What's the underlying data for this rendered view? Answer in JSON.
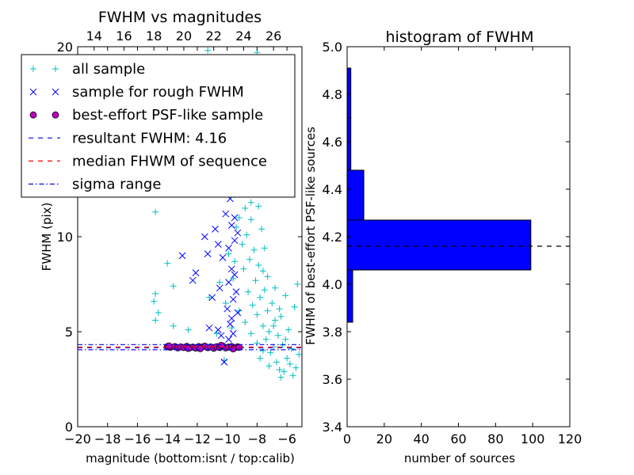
{
  "chart_data": [
    {
      "type": "scatter",
      "title": "FWHM vs magnitudes",
      "xlabel": "magnitude (bottom:isnt / top:calib)",
      "ylabel": "FWHM (pix)",
      "xlim": [
        -20,
        -5
      ],
      "ylim": [
        0,
        20
      ],
      "xticks": [
        -20,
        -18,
        -16,
        -14,
        -12,
        -10,
        -8,
        -6
      ],
      "xtick_labels": [
        "−20",
        "−18",
        "−16",
        "−14",
        "−12",
        "−10",
        "−8",
        "−6"
      ],
      "yticks": [
        0,
        5,
        10,
        20
      ],
      "ytick_labels": [
        "0",
        "5",
        "10",
        "20"
      ],
      "top_xticks": [
        14,
        16,
        18,
        20,
        22,
        24,
        26
      ],
      "top_xtick_labels": [
        "14",
        "16",
        "18",
        "20",
        "22",
        "24",
        "26"
      ],
      "top_axis_offset": 32.9,
      "legend_position": "upper-left",
      "legend": [
        {
          "label": "all sample",
          "marker": "plus",
          "color": "#00bfbf"
        },
        {
          "label": "sample for rough FWHM",
          "marker": "x",
          "color": "#0000ff"
        },
        {
          "label": "best-effort PSF-like sample",
          "marker": "circle",
          "color": "#bf00bf"
        },
        {
          "label": "resultant FWHM: 4.16",
          "marker": "dashed",
          "color": "#0000ff"
        },
        {
          "label": "median FHWM of sequence",
          "marker": "dashed",
          "color": "#ff0000"
        },
        {
          "label": "sigma range",
          "marker": "dashdot",
          "color": "#0000ff"
        }
      ],
      "series": [
        {
          "name": "all sample",
          "color": "#00bfbf",
          "marker": "plus",
          "points": [
            [
              -11.3,
              19.8
            ],
            [
              -8.0,
              19.7
            ],
            [
              -8.8,
              11.5
            ],
            [
              -14.8,
              11.3
            ],
            [
              -9.5,
              12.2
            ],
            [
              -14.0,
              8.6
            ],
            [
              -14.8,
              7.0
            ],
            [
              -14.9,
              6.6
            ],
            [
              -14.6,
              6.0
            ],
            [
              -14.8,
              5.6
            ],
            [
              -13.6,
              5.3
            ],
            [
              -12.6,
              5.1
            ],
            [
              -13.6,
              7.4
            ],
            [
              -11.2,
              6.8
            ],
            [
              -10.7,
              4.9
            ],
            [
              -10.5,
              7.6
            ],
            [
              -10.2,
              3.5
            ],
            [
              -10.1,
              6.5
            ],
            [
              -9.9,
              9.1
            ],
            [
              -9.7,
              5.2
            ],
            [
              -9.4,
              10.5
            ],
            [
              -9.2,
              11.0
            ],
            [
              -9.0,
              9.6
            ],
            [
              -8.9,
              8.3
            ],
            [
              -8.8,
              12.6
            ],
            [
              -8.7,
              10.1
            ],
            [
              -8.6,
              7.1
            ],
            [
              -8.5,
              8.8
            ],
            [
              -8.4,
              11.8
            ],
            [
              -8.3,
              6.4
            ],
            [
              -8.2,
              9.3
            ],
            [
              -8.1,
              7.7
            ],
            [
              -8.0,
              5.9
            ],
            [
              -7.9,
              8.5
            ],
            [
              -7.8,
              6.8
            ],
            [
              -7.7,
              10.4
            ],
            [
              -7.6,
              5.3
            ],
            [
              -7.5,
              7.2
            ],
            [
              -7.4,
              4.6
            ],
            [
              -7.3,
              6.1
            ],
            [
              -7.2,
              5.0
            ],
            [
              -7.1,
              3.9
            ],
            [
              -7.0,
              6.5
            ],
            [
              -6.9,
              4.2
            ],
            [
              -6.8,
              5.6
            ],
            [
              -6.7,
              3.4
            ],
            [
              -6.6,
              4.8
            ],
            [
              -6.5,
              3.0
            ],
            [
              -6.3,
              4.3
            ],
            [
              -6.2,
              2.9
            ],
            [
              -6.0,
              3.6
            ],
            [
              -5.8,
              3.3
            ],
            [
              -5.6,
              2.7
            ],
            [
              -5.4,
              3.1
            ],
            [
              -5.2,
              3.8
            ],
            [
              -5.3,
              7.5
            ],
            [
              -5.5,
              6.3
            ],
            [
              -5.9,
              5.1
            ],
            [
              -6.1,
              6.9
            ],
            [
              -6.4,
              5.8
            ],
            [
              -7.5,
              9.4
            ],
            [
              -8.1,
              12.8
            ],
            [
              -8.6,
              13.5
            ],
            [
              -9.1,
              14.2
            ],
            [
              -8.3,
              14.8
            ],
            [
              -8.9,
              15.5
            ],
            [
              -8.5,
              16.3
            ],
            [
              -9.3,
              17.1
            ],
            [
              -8.2,
              17.8
            ],
            [
              -8.7,
              18.5
            ],
            [
              -9.0,
              13.1
            ],
            [
              -8.4,
              10.9
            ],
            [
              -7.9,
              11.6
            ],
            [
              -7.6,
              8.2
            ],
            [
              -7.3,
              7.9
            ],
            [
              -6.8,
              7.3
            ],
            [
              -6.5,
              6.2
            ],
            [
              -6.9,
              5.3
            ],
            [
              -7.6,
              4.0
            ],
            [
              -8.0,
              4.4
            ],
            [
              -8.4,
              4.9
            ],
            [
              -8.8,
              5.5
            ],
            [
              -9.2,
              6.1
            ],
            [
              -9.6,
              7.8
            ],
            [
              -9.5,
              8.7
            ],
            [
              -7.2,
              3.2
            ],
            [
              -6.4,
              2.6
            ],
            [
              -5.7,
              4.1
            ],
            [
              -6.1,
              4.6
            ],
            [
              -7.8,
              3.6
            ]
          ]
        },
        {
          "name": "sample for rough FWHM",
          "color": "#0000ff",
          "marker": "x",
          "points": [
            [
              -13.0,
              9.0
            ],
            [
              -12.1,
              8.1
            ],
            [
              -12.3,
              7.7
            ],
            [
              -11.5,
              10.0
            ],
            [
              -11.3,
              9.1
            ],
            [
              -11.2,
              5.2
            ],
            [
              -11.0,
              6.8
            ],
            [
              -10.8,
              10.4
            ],
            [
              -10.6,
              9.6
            ],
            [
              -10.5,
              7.3
            ],
            [
              -10.3,
              8.9
            ],
            [
              -10.2,
              3.4
            ],
            [
              -10.1,
              11.2
            ],
            [
              -10.0,
              6.2
            ],
            [
              -9.9,
              7.6
            ],
            [
              -9.9,
              9.4
            ],
            [
              -9.8,
              12.0
            ],
            [
              -9.8,
              5.4
            ],
            [
              -9.7,
              8.3
            ],
            [
              -9.7,
              10.6
            ],
            [
              -9.6,
              13.6
            ],
            [
              -9.6,
              6.7
            ],
            [
              -9.6,
              4.9
            ],
            [
              -9.5,
              12.6
            ],
            [
              -9.5,
              11.0
            ],
            [
              -9.5,
              9.8
            ],
            [
              -9.5,
              8.0
            ],
            [
              -9.4,
              7.1
            ],
            [
              -9.4,
              14.6
            ],
            [
              -9.4,
              15.7
            ],
            [
              -9.3,
              13.0
            ],
            [
              -9.3,
              10.2
            ],
            [
              -9.3,
              6.0
            ],
            [
              -9.8,
              16.5
            ],
            [
              -9.6,
              17.2
            ],
            [
              -10.1,
              14.8
            ],
            [
              -9.9,
              4.6
            ],
            [
              -9.7,
              5.7
            ],
            [
              -10.4,
              4.8
            ],
            [
              -10.6,
              5.1
            ]
          ]
        },
        {
          "name": "best-effort PSF-like sample",
          "color": "#bf00bf",
          "marker": "circle",
          "points": [
            [
              -14.0,
              4.21
            ],
            [
              -13.8,
              4.18
            ],
            [
              -13.5,
              4.22
            ],
            [
              -13.3,
              4.15
            ],
            [
              -13.1,
              4.2
            ],
            [
              -12.9,
              4.17
            ],
            [
              -12.7,
              4.23
            ],
            [
              -12.5,
              4.16
            ],
            [
              -12.3,
              4.19
            ],
            [
              -12.1,
              4.14
            ],
            [
              -11.9,
              4.22
            ],
            [
              -11.7,
              4.18
            ],
            [
              -11.5,
              4.24
            ],
            [
              -11.3,
              4.16
            ],
            [
              -11.1,
              4.2
            ],
            [
              -10.9,
              4.13
            ],
            [
              -10.7,
              4.21
            ],
            [
              -10.5,
              4.17
            ],
            [
              -10.3,
              4.25
            ],
            [
              -10.1,
              4.15
            ],
            [
              -9.9,
              4.19
            ],
            [
              -9.7,
              4.22
            ],
            [
              -9.5,
              4.16
            ],
            [
              -9.3,
              4.2
            ],
            [
              -9.2,
              4.18
            ],
            [
              -13.9,
              4.25
            ],
            [
              -12.6,
              4.12
            ],
            [
              -11.8,
              4.11
            ],
            [
              -10.4,
              4.28
            ],
            [
              -9.6,
              4.1
            ]
          ]
        }
      ],
      "reference_lines": [
        {
          "y": 4.16,
          "style": "dashed",
          "color": "#0000ff"
        },
        {
          "y": 4.19,
          "style": "dashed",
          "color": "#ff0000"
        },
        {
          "y": 4.32,
          "style": "dashdot",
          "color": "#0000ff"
        },
        {
          "y": 4.05,
          "style": "dashdot",
          "color": "#0000ff"
        }
      ]
    },
    {
      "type": "bar",
      "orientation": "horizontal",
      "title": "histogram of FWHM",
      "xlabel": "number of sources",
      "ylabel": "FWHM of best-effort PSF-like sources",
      "xlim": [
        0,
        120
      ],
      "ylim": [
        3.4,
        5.0
      ],
      "xticks": [
        0,
        20,
        40,
        60,
        80,
        100,
        120
      ],
      "yticks": [
        3.4,
        3.6,
        3.8,
        4.0,
        4.2,
        4.4,
        4.6,
        4.8,
        5.0
      ],
      "ytick_labels": [
        "3.4",
        "3.6",
        "3.8",
        "4.0",
        "4.2",
        "4.4",
        "4.6",
        "4.8",
        "5.0"
      ],
      "bar_color": "#0000ff",
      "bins": [
        {
          "from": 3.84,
          "to": 4.06,
          "count": 3
        },
        {
          "from": 4.06,
          "to": 4.27,
          "count": 99
        },
        {
          "from": 4.27,
          "to": 4.48,
          "count": 9
        },
        {
          "from": 4.48,
          "to": 4.7,
          "count": 2
        },
        {
          "from": 4.7,
          "to": 4.91,
          "count": 2
        }
      ],
      "reference_line": {
        "y": 4.16,
        "style": "dashed",
        "color": "#000000"
      }
    }
  ]
}
